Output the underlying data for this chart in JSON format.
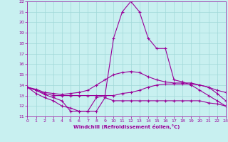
{
  "xlabel": "Windchill (Refroidissement éolien,°C)",
  "xlim": [
    0,
    23
  ],
  "ylim": [
    11,
    22
  ],
  "bg_color": "#c8f0f0",
  "grid_color": "#a0d8d8",
  "line_color": "#990099",
  "marker": "+",
  "lines": [
    {
      "x": [
        0,
        1,
        2,
        3,
        4,
        5,
        6,
        7,
        8,
        9,
        10,
        11,
        12,
        13,
        14,
        15,
        16,
        17,
        18,
        19,
        20,
        21,
        22,
        23
      ],
      "y": [
        13.8,
        13.5,
        13.1,
        12.8,
        12.5,
        11.5,
        11.5,
        11.5,
        12.8,
        13.0,
        18.5,
        21.0,
        22.0,
        21.0,
        18.5,
        17.5,
        17.5,
        14.5,
        14.3,
        14.0,
        13.5,
        13.0,
        12.5,
        12.0
      ]
    },
    {
      "x": [
        0,
        1,
        2,
        3,
        4,
        5,
        6,
        7,
        8,
        9,
        10,
        11,
        12,
        13,
        14,
        15,
        16,
        17,
        18,
        19,
        20,
        21,
        22,
        23
      ],
      "y": [
        13.8,
        13.6,
        13.3,
        13.2,
        13.1,
        13.2,
        13.3,
        13.5,
        14.0,
        14.5,
        15.0,
        15.2,
        15.3,
        15.2,
        14.8,
        14.5,
        14.3,
        14.2,
        14.2,
        14.2,
        14.0,
        13.8,
        13.5,
        13.3
      ]
    },
    {
      "x": [
        0,
        1,
        2,
        3,
        4,
        5,
        6,
        7,
        8,
        9,
        10,
        11,
        12,
        13,
        14,
        15,
        16,
        17,
        18,
        19,
        20,
        21,
        22,
        23
      ],
      "y": [
        13.8,
        13.5,
        13.2,
        13.0,
        13.0,
        13.0,
        13.0,
        13.0,
        13.0,
        13.0,
        13.0,
        13.2,
        13.3,
        13.5,
        13.8,
        14.0,
        14.1,
        14.1,
        14.1,
        14.1,
        14.0,
        13.8,
        13.2,
        12.5
      ]
    },
    {
      "x": [
        0,
        1,
        2,
        3,
        4,
        5,
        6,
        7,
        8,
        9,
        10,
        11,
        12,
        13,
        14,
        15,
        16,
        17,
        18,
        19,
        20,
        21,
        22,
        23
      ],
      "y": [
        13.8,
        13.2,
        12.8,
        12.5,
        12.0,
        11.8,
        11.5,
        11.5,
        11.5,
        12.8,
        12.5,
        12.5,
        12.5,
        12.5,
        12.5,
        12.5,
        12.5,
        12.5,
        12.5,
        12.5,
        12.5,
        12.3,
        12.2,
        12.0
      ]
    }
  ]
}
